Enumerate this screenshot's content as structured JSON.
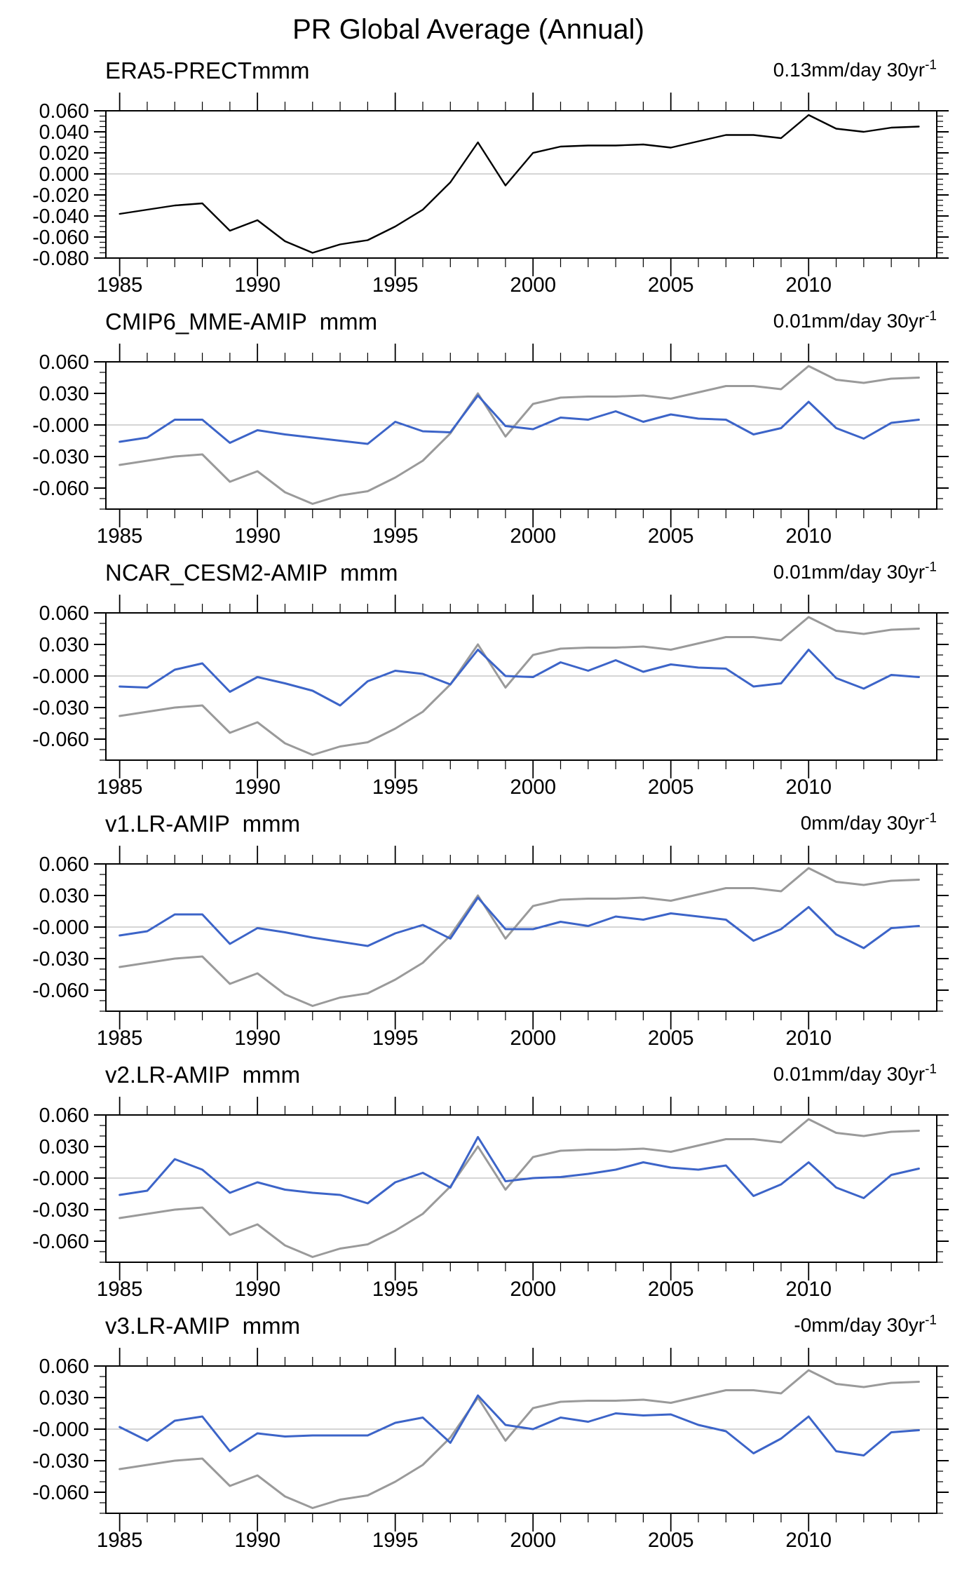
{
  "page_title": "PR Global Average (Annual)",
  "colors": {
    "era5_line": "#000000",
    "reference_line": "#9a9a9a",
    "model_line": "#3c64c8",
    "zero_line": "#ababab",
    "axis": "#000000"
  },
  "chart_data": {
    "type": "line",
    "title": "PR Global Average (Annual)",
    "x_label": "",
    "y_label": "",
    "grid": "zero-line-only",
    "legend_position": "none",
    "years": [
      1985,
      1986,
      1987,
      1988,
      1989,
      1990,
      1991,
      1992,
      1993,
      1994,
      1995,
      1996,
      1997,
      1998,
      1999,
      2000,
      2001,
      2002,
      2003,
      2004,
      2005,
      2006,
      2007,
      2008,
      2009,
      2010,
      2011,
      2012,
      2013,
      2014
    ],
    "xlim": [
      1984.5,
      2014.65
    ],
    "x_major_ticks": [
      1985,
      1990,
      1995,
      2000,
      2005,
      2010
    ],
    "x_tick_labels": [
      "1985",
      "1990",
      "1995",
      "2000",
      "2005",
      "2010"
    ],
    "x_minor_step": 1,
    "era5_values": [
      -0.038,
      -0.034,
      -0.03,
      -0.028,
      -0.054,
      -0.044,
      -0.064,
      -0.075,
      -0.067,
      -0.063,
      -0.05,
      -0.034,
      -0.008,
      0.03,
      -0.011,
      0.02,
      0.026,
      0.027,
      0.027,
      0.028,
      0.025,
      0.031,
      0.037,
      0.037,
      0.034,
      0.056,
      0.043,
      0.04,
      0.044,
      0.045
    ],
    "panels": [
      {
        "title": "ERA5-PRECTmmm",
        "trend_label": "0.13mm/day 30yr",
        "trend_exponent": "-1",
        "ylim": [
          -0.08,
          0.06
        ],
        "y_major_ticks": [
          0.06,
          0.04,
          0.02,
          0.0,
          -0.02,
          -0.04,
          -0.06,
          -0.08
        ],
        "y_tick_labels": [
          "0.060",
          "0.040",
          "0.020",
          "0.000",
          "-0.020",
          "-0.040",
          "-0.060",
          "-0.080"
        ],
        "y_minor_step": 0.005,
        "series": [
          {
            "name": "ERA5-PRECT",
            "color_key": "era5_line",
            "line_width": 2.4,
            "values_from": "era5_values"
          }
        ]
      },
      {
        "title": "CMIP6_MME-AMIP  mmm",
        "trend_label": "0.01mm/day 30yr",
        "trend_exponent": "-1",
        "ylim": [
          -0.08,
          0.06
        ],
        "y_major_ticks": [
          0.06,
          0.03,
          0.0,
          -0.03,
          -0.06
        ],
        "y_tick_labels": [
          "0.060",
          "0.030",
          "-0.000",
          "-0.030",
          "-0.060"
        ],
        "y_minor_step": 0.01,
        "series": [
          {
            "name": "ERA5-PRECT reference",
            "color_key": "reference_line",
            "line_width": 3,
            "values_from": "era5_values"
          },
          {
            "name": "CMIP6_MME-AMIP",
            "color_key": "model_line",
            "line_width": 3,
            "values": [
              -0.016,
              -0.012,
              0.005,
              0.005,
              -0.017,
              -0.005,
              -0.009,
              -0.012,
              -0.015,
              -0.018,
              0.003,
              -0.006,
              -0.007,
              0.028,
              -0.001,
              -0.004,
              0.007,
              0.005,
              0.013,
              0.003,
              0.01,
              0.006,
              0.005,
              -0.009,
              -0.003,
              0.022,
              -0.003,
              -0.013,
              0.002,
              0.005
            ]
          }
        ]
      },
      {
        "title": "NCAR_CESM2-AMIP  mmm",
        "trend_label": "0.01mm/day 30yr",
        "trend_exponent": "-1",
        "ylim": [
          -0.08,
          0.06
        ],
        "y_major_ticks": [
          0.06,
          0.03,
          0.0,
          -0.03,
          -0.06
        ],
        "y_tick_labels": [
          "0.060",
          "0.030",
          "-0.000",
          "-0.030",
          "-0.060"
        ],
        "y_minor_step": 0.01,
        "series": [
          {
            "name": "ERA5-PRECT reference",
            "color_key": "reference_line",
            "line_width": 3,
            "values_from": "era5_values"
          },
          {
            "name": "NCAR_CESM2-AMIP",
            "color_key": "model_line",
            "line_width": 3,
            "values": [
              -0.01,
              -0.011,
              0.006,
              0.012,
              -0.015,
              -0.001,
              -0.007,
              -0.014,
              -0.028,
              -0.005,
              0.005,
              0.002,
              -0.008,
              0.025,
              0.0,
              -0.001,
              0.013,
              0.005,
              0.015,
              0.004,
              0.011,
              0.008,
              0.007,
              -0.01,
              -0.007,
              0.025,
              -0.002,
              -0.012,
              0.001,
              -0.001
            ]
          }
        ]
      },
      {
        "title": "v1.LR-AMIP  mmm",
        "trend_label": "0mm/day 30yr",
        "trend_exponent": "-1",
        "ylim": [
          -0.08,
          0.06
        ],
        "y_major_ticks": [
          0.06,
          0.03,
          0.0,
          -0.03,
          -0.06
        ],
        "y_tick_labels": [
          "0.060",
          "0.030",
          "-0.000",
          "-0.030",
          "-0.060"
        ],
        "y_minor_step": 0.01,
        "series": [
          {
            "name": "ERA5-PRECT reference",
            "color_key": "reference_line",
            "line_width": 3,
            "values_from": "era5_values"
          },
          {
            "name": "v1.LR-AMIP",
            "color_key": "model_line",
            "line_width": 3,
            "values": [
              -0.008,
              -0.004,
              0.012,
              0.012,
              -0.016,
              -0.001,
              -0.005,
              -0.01,
              -0.014,
              -0.018,
              -0.006,
              0.002,
              -0.011,
              0.028,
              -0.002,
              -0.002,
              0.005,
              0.001,
              0.01,
              0.007,
              0.013,
              0.01,
              0.007,
              -0.013,
              -0.002,
              0.019,
              -0.007,
              -0.02,
              -0.001,
              0.001
            ]
          }
        ]
      },
      {
        "title": "v2.LR-AMIP  mmm",
        "trend_label": "0.01mm/day 30yr",
        "trend_exponent": "-1",
        "ylim": [
          -0.08,
          0.06
        ],
        "y_major_ticks": [
          0.06,
          0.03,
          0.0,
          -0.03,
          -0.06
        ],
        "y_tick_labels": [
          "0.060",
          "0.030",
          "-0.000",
          "-0.030",
          "-0.060"
        ],
        "y_minor_step": 0.01,
        "series": [
          {
            "name": "ERA5-PRECT reference",
            "color_key": "reference_line",
            "line_width": 3,
            "values_from": "era5_values"
          },
          {
            "name": "v2.LR-AMIP",
            "color_key": "model_line",
            "line_width": 3,
            "values": [
              -0.016,
              -0.012,
              0.018,
              0.008,
              -0.014,
              -0.004,
              -0.011,
              -0.014,
              -0.016,
              -0.024,
              -0.004,
              0.005,
              -0.009,
              0.039,
              -0.003,
              0.0,
              0.001,
              0.004,
              0.008,
              0.015,
              0.01,
              0.008,
              0.012,
              -0.017,
              -0.006,
              0.015,
              -0.009,
              -0.019,
              0.003,
              0.009
            ]
          }
        ]
      },
      {
        "title": "v3.LR-AMIP  mmm",
        "trend_label": "-0mm/day 30yr",
        "trend_exponent": "-1",
        "ylim": [
          -0.08,
          0.06
        ],
        "y_major_ticks": [
          0.06,
          0.03,
          0.0,
          -0.03,
          -0.06
        ],
        "y_tick_labels": [
          "0.060",
          "0.030",
          "-0.000",
          "-0.030",
          "-0.060"
        ],
        "y_minor_step": 0.01,
        "series": [
          {
            "name": "ERA5-PRECT reference",
            "color_key": "reference_line",
            "line_width": 3,
            "values_from": "era5_values"
          },
          {
            "name": "v3.LR-AMIP",
            "color_key": "model_line",
            "line_width": 3,
            "values": [
              0.002,
              -0.011,
              0.008,
              0.012,
              -0.021,
              -0.004,
              -0.007,
              -0.006,
              -0.006,
              -0.006,
              0.006,
              0.011,
              -0.013,
              0.032,
              0.004,
              0.0,
              0.011,
              0.007,
              0.015,
              0.013,
              0.014,
              0.004,
              -0.002,
              -0.023,
              -0.009,
              0.012,
              -0.021,
              -0.025,
              -0.003,
              -0.001
            ]
          }
        ]
      }
    ]
  }
}
